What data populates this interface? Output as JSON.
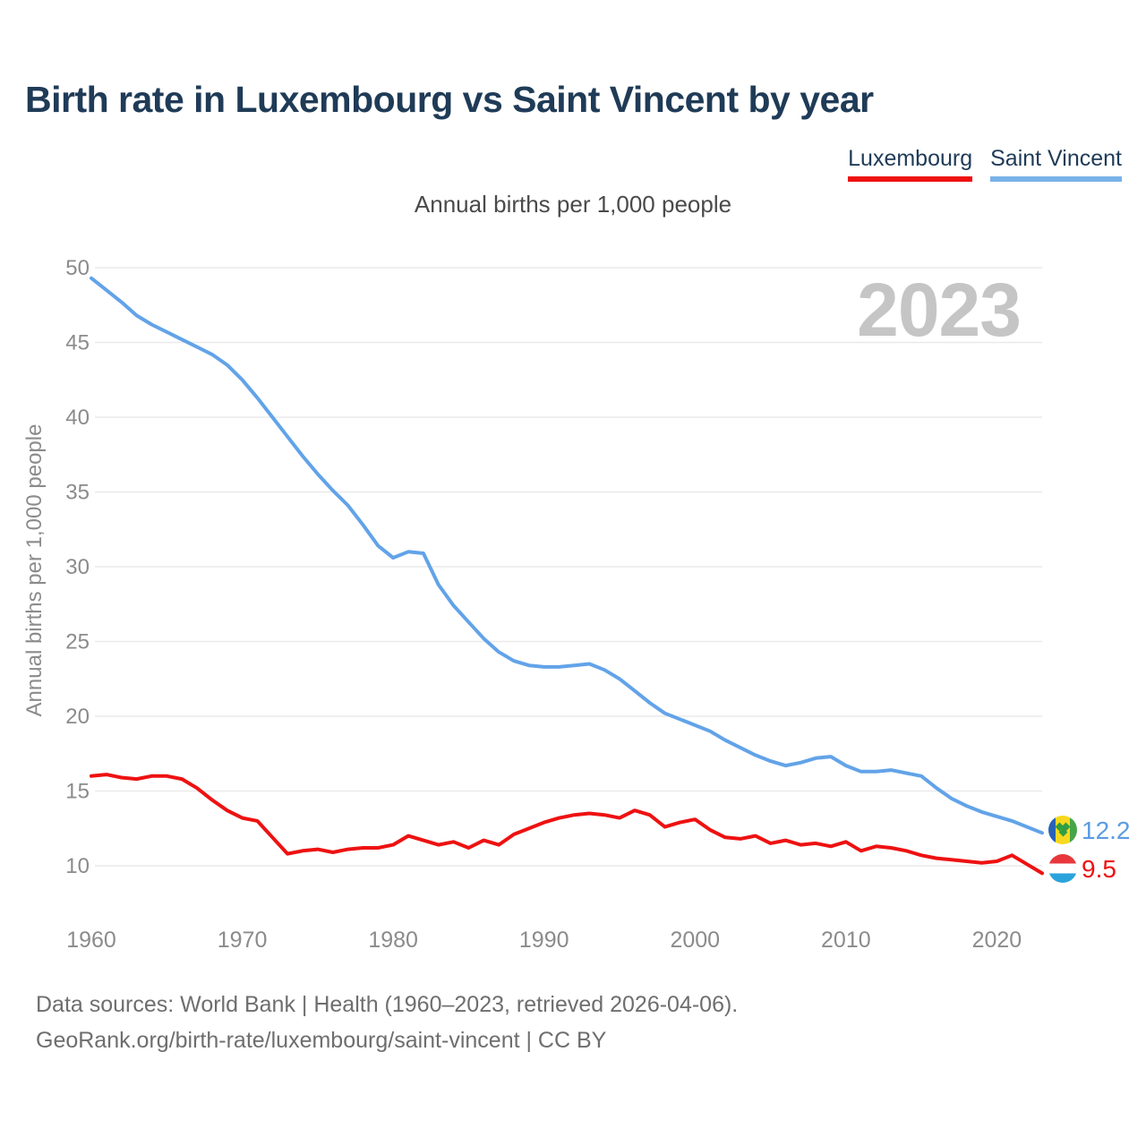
{
  "header": {
    "title": "Birth rate in Luxembourg vs Saint Vincent by year"
  },
  "legend": {
    "items": [
      {
        "label": "Luxembourg",
        "color": "#ee1111"
      },
      {
        "label": "Saint Vincent",
        "color": "#79b2e8"
      }
    ]
  },
  "footer": {
    "line1": "Data sources: World Bank | Health (1960–2023, retrieved 2026-04-06).",
    "line2": "GeoRank.org/birth-rate/luxembourg/saint-vincent | CC BY"
  },
  "chart_data": {
    "type": "line",
    "title": "Birth rate in Luxembourg vs Saint Vincent by year",
    "subtitle": "Annual births per 1,000 people",
    "watermark": "2023",
    "ylabel": "Annual births per 1,000 people",
    "xlabel": "",
    "ylim": [
      10,
      50
    ],
    "grid": true,
    "legend_position": "top-right",
    "yticks": [
      10,
      15,
      20,
      25,
      30,
      35,
      40,
      45,
      50
    ],
    "xticks": [
      1960,
      1970,
      1980,
      1990,
      2000,
      2010,
      2020
    ],
    "x": [
      1960,
      1961,
      1962,
      1963,
      1964,
      1965,
      1966,
      1967,
      1968,
      1969,
      1970,
      1971,
      1972,
      1973,
      1974,
      1975,
      1976,
      1977,
      1978,
      1979,
      1980,
      1981,
      1982,
      1983,
      1984,
      1985,
      1986,
      1987,
      1988,
      1989,
      1990,
      1991,
      1992,
      1993,
      1994,
      1995,
      1996,
      1997,
      1998,
      1999,
      2000,
      2001,
      2002,
      2003,
      2004,
      2005,
      2006,
      2007,
      2008,
      2009,
      2010,
      2011,
      2012,
      2013,
      2014,
      2015,
      2016,
      2017,
      2018,
      2019,
      2020,
      2021,
      2022,
      2023
    ],
    "series": [
      {
        "name": "Luxembourg",
        "color": "#ee1111",
        "stroke_width": 4,
        "end_label": "9.5",
        "flag": "luxembourg",
        "values": [
          16.0,
          16.1,
          15.9,
          15.8,
          16.0,
          16.0,
          15.8,
          15.2,
          14.4,
          13.7,
          13.2,
          13.0,
          11.9,
          10.8,
          11.0,
          11.1,
          10.9,
          11.1,
          11.2,
          11.2,
          11.4,
          12.0,
          11.7,
          11.4,
          11.6,
          11.2,
          11.7,
          11.4,
          12.1,
          12.5,
          12.9,
          13.2,
          13.4,
          13.5,
          13.4,
          13.2,
          13.7,
          13.4,
          12.6,
          12.9,
          13.1,
          12.4,
          11.9,
          11.8,
          12.0,
          11.5,
          11.7,
          11.4,
          11.5,
          11.3,
          11.6,
          11.0,
          11.3,
          11.2,
          11.0,
          10.7,
          10.5,
          10.4,
          10.3,
          10.2,
          10.3,
          10.7,
          10.1,
          9.5
        ]
      },
      {
        "name": "Saint Vincent",
        "color": "#62a3e8",
        "stroke_width": 4,
        "end_label": "12.2",
        "flag": "saint-vincent",
        "values": [
          49.3,
          48.5,
          47.7,
          46.8,
          46.2,
          45.7,
          45.2,
          44.7,
          44.2,
          43.5,
          42.5,
          41.3,
          40.0,
          38.7,
          37.4,
          36.2,
          35.1,
          34.1,
          32.8,
          31.4,
          30.6,
          31.0,
          30.9,
          28.8,
          27.4,
          26.3,
          25.2,
          24.3,
          23.7,
          23.4,
          23.3,
          23.3,
          23.4,
          23.5,
          23.1,
          22.5,
          21.7,
          20.9,
          20.2,
          19.8,
          19.4,
          19.0,
          18.4,
          17.9,
          17.4,
          17.0,
          16.7,
          16.9,
          17.2,
          17.3,
          16.7,
          16.3,
          16.3,
          16.4,
          16.2,
          16.0,
          15.2,
          14.5,
          14.0,
          13.6,
          13.3,
          13.0,
          12.6,
          12.2
        ]
      }
    ]
  },
  "colors": {
    "title_text": "#1f3b57",
    "axis_text": "#8b8b8b",
    "subtitle_text": "#4a4a4a",
    "footer_text": "#6e6e6e",
    "gridline": "#eaeaea",
    "watermark": "#c5c5c5",
    "luxembourg_line": "#ee1111",
    "saint_vincent_line": "#62a3e8",
    "luxembourg_value_text": "#ee1111",
    "saint_vincent_value_text": "#5b9ce2"
  }
}
